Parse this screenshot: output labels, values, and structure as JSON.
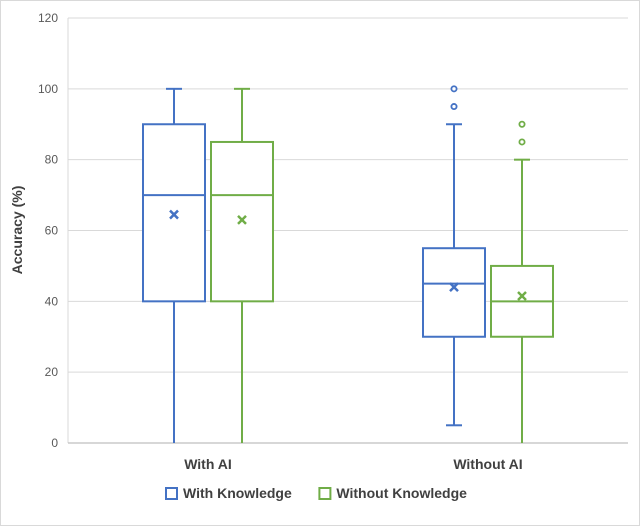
{
  "chart_data": {
    "type": "boxplot",
    "ylabel": "Accuracy (%)",
    "xlabel": "",
    "title": "",
    "ylim": [
      0,
      120
    ],
    "yticks": [
      0,
      20,
      40,
      60,
      80,
      100,
      120
    ],
    "categories": [
      "With AI",
      "Without AI"
    ],
    "grid": true,
    "legend_position": "bottom",
    "series": [
      {
        "name": "With Knowledge",
        "color": "#4472C4",
        "boxes": [
          {
            "min": 0,
            "q1": 40,
            "median": 70,
            "q3": 90,
            "max": 100,
            "mean": 64.5,
            "outliers": []
          },
          {
            "min": 5,
            "q1": 30,
            "median": 45,
            "q3": 55,
            "max": 90,
            "mean": 44,
            "outliers": [
              95,
              100
            ]
          }
        ]
      },
      {
        "name": "Without Knowledge",
        "color": "#70AD47",
        "boxes": [
          {
            "min": 0,
            "q1": 40,
            "median": 70,
            "q3": 85,
            "max": 100,
            "mean": 63,
            "outliers": []
          },
          {
            "min": 0,
            "q1": 30,
            "median": 40,
            "q3": 50,
            "max": 80,
            "mean": 41.5,
            "outliers": [
              85,
              90
            ]
          }
        ]
      }
    ]
  }
}
